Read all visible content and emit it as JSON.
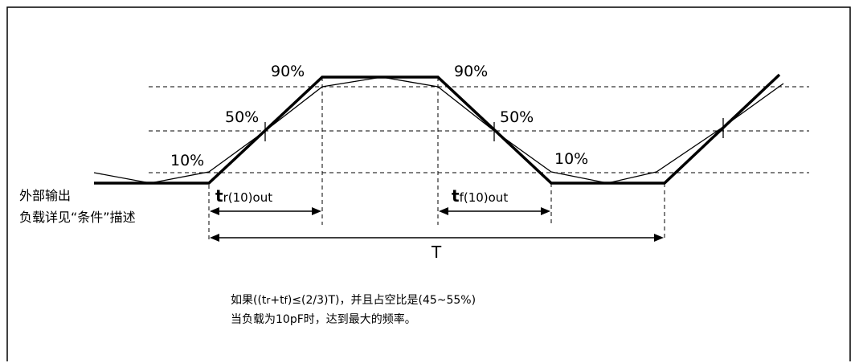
{
  "levels": {
    "pct_10_left": "10%",
    "pct_50_left": "50%",
    "pct_90_left": "90%",
    "pct_90_right": "90%",
    "pct_50_right": "50%",
    "pct_10_right": "10%"
  },
  "timing": {
    "rise": {
      "symbol": "t",
      "sub": "r",
      "suffix": "(10)out"
    },
    "fall": {
      "symbol": "t",
      "sub": "f",
      "suffix": "(10)out"
    },
    "period": "T"
  },
  "load_label": {
    "line1": "外部输出",
    "line2": "负载详见“条件”描述"
  },
  "note": {
    "line1": {
      "a": "如果((t",
      "b": "r",
      "c": "+t",
      "d": "f",
      "e": ")≤(2/3)T)，并且占空比是(45~55%)"
    },
    "line2": "当负载为10pF时，达到最大的频率。"
  }
}
